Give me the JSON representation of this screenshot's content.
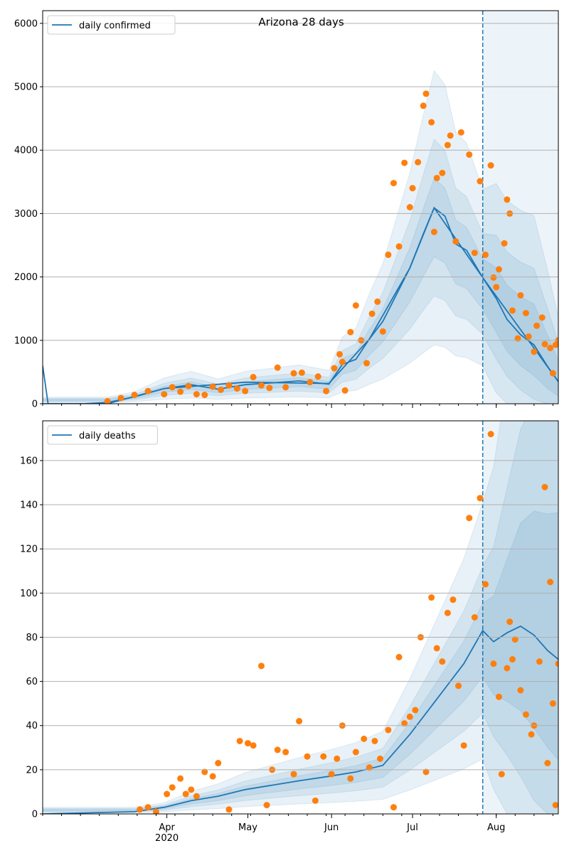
{
  "colors": {
    "line": "#1f77b4",
    "points": "#ff7f0e",
    "band": "#1f77b4",
    "grid": "#b0b0b0",
    "vline": "#1f77b4"
  },
  "chart_data": [
    {
      "type": "line",
      "title": "Arizona 28 days",
      "legend": "daily confirmed",
      "legend_position": "top-left",
      "grid": "horizontal",
      "xlim": [
        "2020-02-15",
        "2020-08-24"
      ],
      "ylim": [
        0,
        6200
      ],
      "yticks": [
        0,
        1000,
        2000,
        3000,
        4000,
        5000,
        6000
      ],
      "xticks": [],
      "forecast_start": "2020-07-27",
      "series": [
        {
          "points": [
            [
              "2020-02-15",
              0
            ],
            [
              "2020-03-01",
              0
            ],
            [
              "2020-03-10",
              20
            ],
            [
              "2020-03-20",
              110
            ],
            [
              "2020-03-31",
              240
            ],
            [
              "2020-04-10",
              300
            ],
            [
              "2020-04-20",
              230
            ],
            [
              "2020-04-30",
              300
            ],
            [
              "2020-05-10",
              330
            ],
            [
              "2020-05-20",
              360
            ],
            [
              "2020-05-31",
              310
            ],
            [
              "2020-06-05",
              620
            ],
            [
              "2020-06-10",
              700
            ],
            [
              "2020-06-15",
              1020
            ],
            [
              "2020-06-20",
              1300
            ],
            [
              "2020-06-25",
              1720
            ],
            [
              "2020-06-30",
              2140
            ],
            [
              "2020-07-05",
              2680
            ],
            [
              "2020-07-09",
              3090
            ],
            [
              "2020-07-13",
              2960
            ],
            [
              "2020-07-17",
              2520
            ],
            [
              "2020-07-21",
              2420
            ],
            [
              "2020-07-27",
              1990
            ],
            [
              "2020-08-01",
              1660
            ],
            [
              "2020-08-05",
              1330
            ],
            [
              "2020-08-10",
              1090
            ],
            [
              "2020-08-15",
              930
            ],
            [
              "2020-08-20",
              590
            ],
            [
              "2020-08-24",
              350
            ]
          ]
        },
        {
          "points": [
            [
              "2020-02-15",
              600
            ],
            [
              "2020-02-17",
              0
            ],
            [
              "2020-03-10",
              0
            ],
            [
              "2020-03-31",
              240
            ],
            [
              "2020-04-30",
              340
            ],
            [
              "2020-05-31",
              320
            ],
            [
              "2020-06-15",
              1020
            ],
            [
              "2020-06-30",
              2140
            ],
            [
              "2020-07-09",
              3090
            ],
            [
              "2020-07-27",
              1990
            ],
            [
              "2020-08-24",
              350
            ]
          ]
        }
      ],
      "scatter": [
        [
          "2020-03-10",
          40
        ],
        [
          "2020-03-15",
          90
        ],
        [
          "2020-03-20",
          140
        ],
        [
          "2020-03-25",
          200
        ],
        [
          "2020-03-31",
          150
        ],
        [
          "2020-04-03",
          260
        ],
        [
          "2020-04-06",
          190
        ],
        [
          "2020-04-09",
          280
        ],
        [
          "2020-04-12",
          150
        ],
        [
          "2020-04-15",
          140
        ],
        [
          "2020-04-18",
          270
        ],
        [
          "2020-04-21",
          220
        ],
        [
          "2020-04-24",
          290
        ],
        [
          "2020-04-27",
          240
        ],
        [
          "2020-04-30",
          200
        ],
        [
          "2020-05-03",
          420
        ],
        [
          "2020-05-06",
          290
        ],
        [
          "2020-05-09",
          250
        ],
        [
          "2020-05-12",
          570
        ],
        [
          "2020-05-15",
          260
        ],
        [
          "2020-05-18",
          480
        ],
        [
          "2020-05-21",
          490
        ],
        [
          "2020-05-24",
          340
        ],
        [
          "2020-05-27",
          430
        ],
        [
          "2020-05-30",
          200
        ],
        [
          "2020-06-02",
          560
        ],
        [
          "2020-06-04",
          780
        ],
        [
          "2020-06-05",
          660
        ],
        [
          "2020-06-06",
          210
        ],
        [
          "2020-06-08",
          1130
        ],
        [
          "2020-06-10",
          1550
        ],
        [
          "2020-06-12",
          1000
        ],
        [
          "2020-06-14",
          640
        ],
        [
          "2020-06-16",
          1420
        ],
        [
          "2020-06-18",
          1610
        ],
        [
          "2020-06-20",
          1140
        ],
        [
          "2020-06-22",
          2350
        ],
        [
          "2020-06-24",
          3480
        ],
        [
          "2020-06-26",
          2480
        ],
        [
          "2020-06-28",
          3800
        ],
        [
          "2020-06-30",
          3100
        ],
        [
          "2020-07-01",
          3400
        ],
        [
          "2020-07-03",
          3810
        ],
        [
          "2020-07-05",
          4700
        ],
        [
          "2020-07-06",
          4890
        ],
        [
          "2020-07-08",
          4440
        ],
        [
          "2020-07-09",
          2710
        ],
        [
          "2020-07-10",
          3560
        ],
        [
          "2020-07-12",
          3640
        ],
        [
          "2020-07-14",
          4080
        ],
        [
          "2020-07-15",
          4230
        ],
        [
          "2020-07-17",
          2560
        ],
        [
          "2020-07-19",
          4280
        ],
        [
          "2020-07-22",
          3930
        ],
        [
          "2020-07-24",
          2380
        ],
        [
          "2020-07-26",
          3510
        ],
        [
          "2020-07-28",
          2350
        ],
        [
          "2020-07-30",
          3760
        ],
        [
          "2020-07-31",
          1990
        ],
        [
          "2020-08-01",
          1840
        ],
        [
          "2020-08-02",
          2120
        ],
        [
          "2020-08-04",
          2530
        ],
        [
          "2020-08-05",
          3220
        ],
        [
          "2020-08-06",
          3000
        ],
        [
          "2020-08-07",
          1470
        ],
        [
          "2020-08-09",
          1030
        ],
        [
          "2020-08-10",
          1710
        ],
        [
          "2020-08-12",
          1430
        ],
        [
          "2020-08-13",
          1060
        ],
        [
          "2020-08-15",
          820
        ],
        [
          "2020-08-16",
          1230
        ],
        [
          "2020-08-18",
          1360
        ],
        [
          "2020-08-19",
          940
        ],
        [
          "2020-08-21",
          880
        ],
        [
          "2020-08-22",
          480
        ],
        [
          "2020-08-23",
          930
        ],
        [
          "2020-08-24",
          1000
        ]
      ]
    },
    {
      "type": "line",
      "legend": "daily deaths",
      "legend_position": "top-left",
      "grid": "horizontal",
      "xlim": [
        "2020-02-15",
        "2020-08-24"
      ],
      "ylim": [
        0,
        178
      ],
      "yticks": [
        0,
        20,
        40,
        60,
        80,
        100,
        120,
        140,
        160
      ],
      "xticks": [
        "Apr\n2020",
        "May",
        "Jun",
        "Jul",
        "Aug"
      ],
      "forecast_start": "2020-07-27",
      "series": [
        {
          "points": [
            [
              "2020-02-15",
              0
            ],
            [
              "2020-03-20",
              1
            ],
            [
              "2020-03-31",
              3
            ],
            [
              "2020-04-10",
              6
            ],
            [
              "2020-04-20",
              8
            ],
            [
              "2020-04-30",
              11
            ],
            [
              "2020-05-10",
              13
            ],
            [
              "2020-05-20",
              15
            ],
            [
              "2020-05-31",
              17
            ],
            [
              "2020-06-10",
              19
            ],
            [
              "2020-06-20",
              22
            ],
            [
              "2020-06-30",
              36
            ],
            [
              "2020-07-10",
              52
            ],
            [
              "2020-07-20",
              68
            ],
            [
              "2020-07-27",
              83
            ],
            [
              "2020-07-31",
              78
            ],
            [
              "2020-08-05",
              82
            ],
            [
              "2020-08-10",
              85
            ],
            [
              "2020-08-15",
              81
            ],
            [
              "2020-08-20",
              74
            ],
            [
              "2020-08-24",
              70
            ]
          ]
        }
      ],
      "scatter": [
        [
          "2020-03-22",
          2
        ],
        [
          "2020-03-25",
          3
        ],
        [
          "2020-03-28",
          1
        ],
        [
          "2020-04-01",
          9
        ],
        [
          "2020-04-03",
          12
        ],
        [
          "2020-04-06",
          16
        ],
        [
          "2020-04-08",
          9
        ],
        [
          "2020-04-10",
          11
        ],
        [
          "2020-04-12",
          8
        ],
        [
          "2020-04-15",
          19
        ],
        [
          "2020-04-18",
          17
        ],
        [
          "2020-04-20",
          23
        ],
        [
          "2020-04-24",
          2
        ],
        [
          "2020-04-28",
          33
        ],
        [
          "2020-05-01",
          32
        ],
        [
          "2020-05-03",
          31
        ],
        [
          "2020-05-06",
          67
        ],
        [
          "2020-05-08",
          4
        ],
        [
          "2020-05-10",
          20
        ],
        [
          "2020-05-12",
          29
        ],
        [
          "2020-05-15",
          28
        ],
        [
          "2020-05-18",
          18
        ],
        [
          "2020-05-20",
          42
        ],
        [
          "2020-05-23",
          26
        ],
        [
          "2020-05-26",
          6
        ],
        [
          "2020-05-29",
          26
        ],
        [
          "2020-06-01",
          18
        ],
        [
          "2020-06-03",
          25
        ],
        [
          "2020-06-05",
          40
        ],
        [
          "2020-06-08",
          16
        ],
        [
          "2020-06-10",
          28
        ],
        [
          "2020-06-13",
          34
        ],
        [
          "2020-06-15",
          21
        ],
        [
          "2020-06-17",
          33
        ],
        [
          "2020-06-19",
          25
        ],
        [
          "2020-06-22",
          38
        ],
        [
          "2020-06-24",
          3
        ],
        [
          "2020-06-26",
          71
        ],
        [
          "2020-06-28",
          41
        ],
        [
          "2020-06-30",
          44
        ],
        [
          "2020-07-02",
          47
        ],
        [
          "2020-07-04",
          80
        ],
        [
          "2020-07-06",
          19
        ],
        [
          "2020-07-08",
          98
        ],
        [
          "2020-07-10",
          75
        ],
        [
          "2020-07-12",
          69
        ],
        [
          "2020-07-14",
          91
        ],
        [
          "2020-07-16",
          97
        ],
        [
          "2020-07-18",
          58
        ],
        [
          "2020-07-20",
          31
        ],
        [
          "2020-07-22",
          134
        ],
        [
          "2020-07-24",
          89
        ],
        [
          "2020-07-26",
          143
        ],
        [
          "2020-07-28",
          104
        ],
        [
          "2020-07-30",
          172
        ],
        [
          "2020-07-31",
          68
        ],
        [
          "2020-08-02",
          53
        ],
        [
          "2020-08-03",
          18
        ],
        [
          "2020-08-05",
          66
        ],
        [
          "2020-08-06",
          87
        ],
        [
          "2020-08-07",
          70
        ],
        [
          "2020-08-08",
          79
        ],
        [
          "2020-08-10",
          56
        ],
        [
          "2020-08-12",
          45
        ],
        [
          "2020-08-14",
          36
        ],
        [
          "2020-08-15",
          40
        ],
        [
          "2020-08-17",
          69
        ],
        [
          "2020-08-19",
          148
        ],
        [
          "2020-08-20",
          23
        ],
        [
          "2020-08-21",
          105
        ],
        [
          "2020-08-22",
          50
        ],
        [
          "2020-08-23",
          4
        ],
        [
          "2020-08-24",
          68
        ]
      ]
    }
  ]
}
